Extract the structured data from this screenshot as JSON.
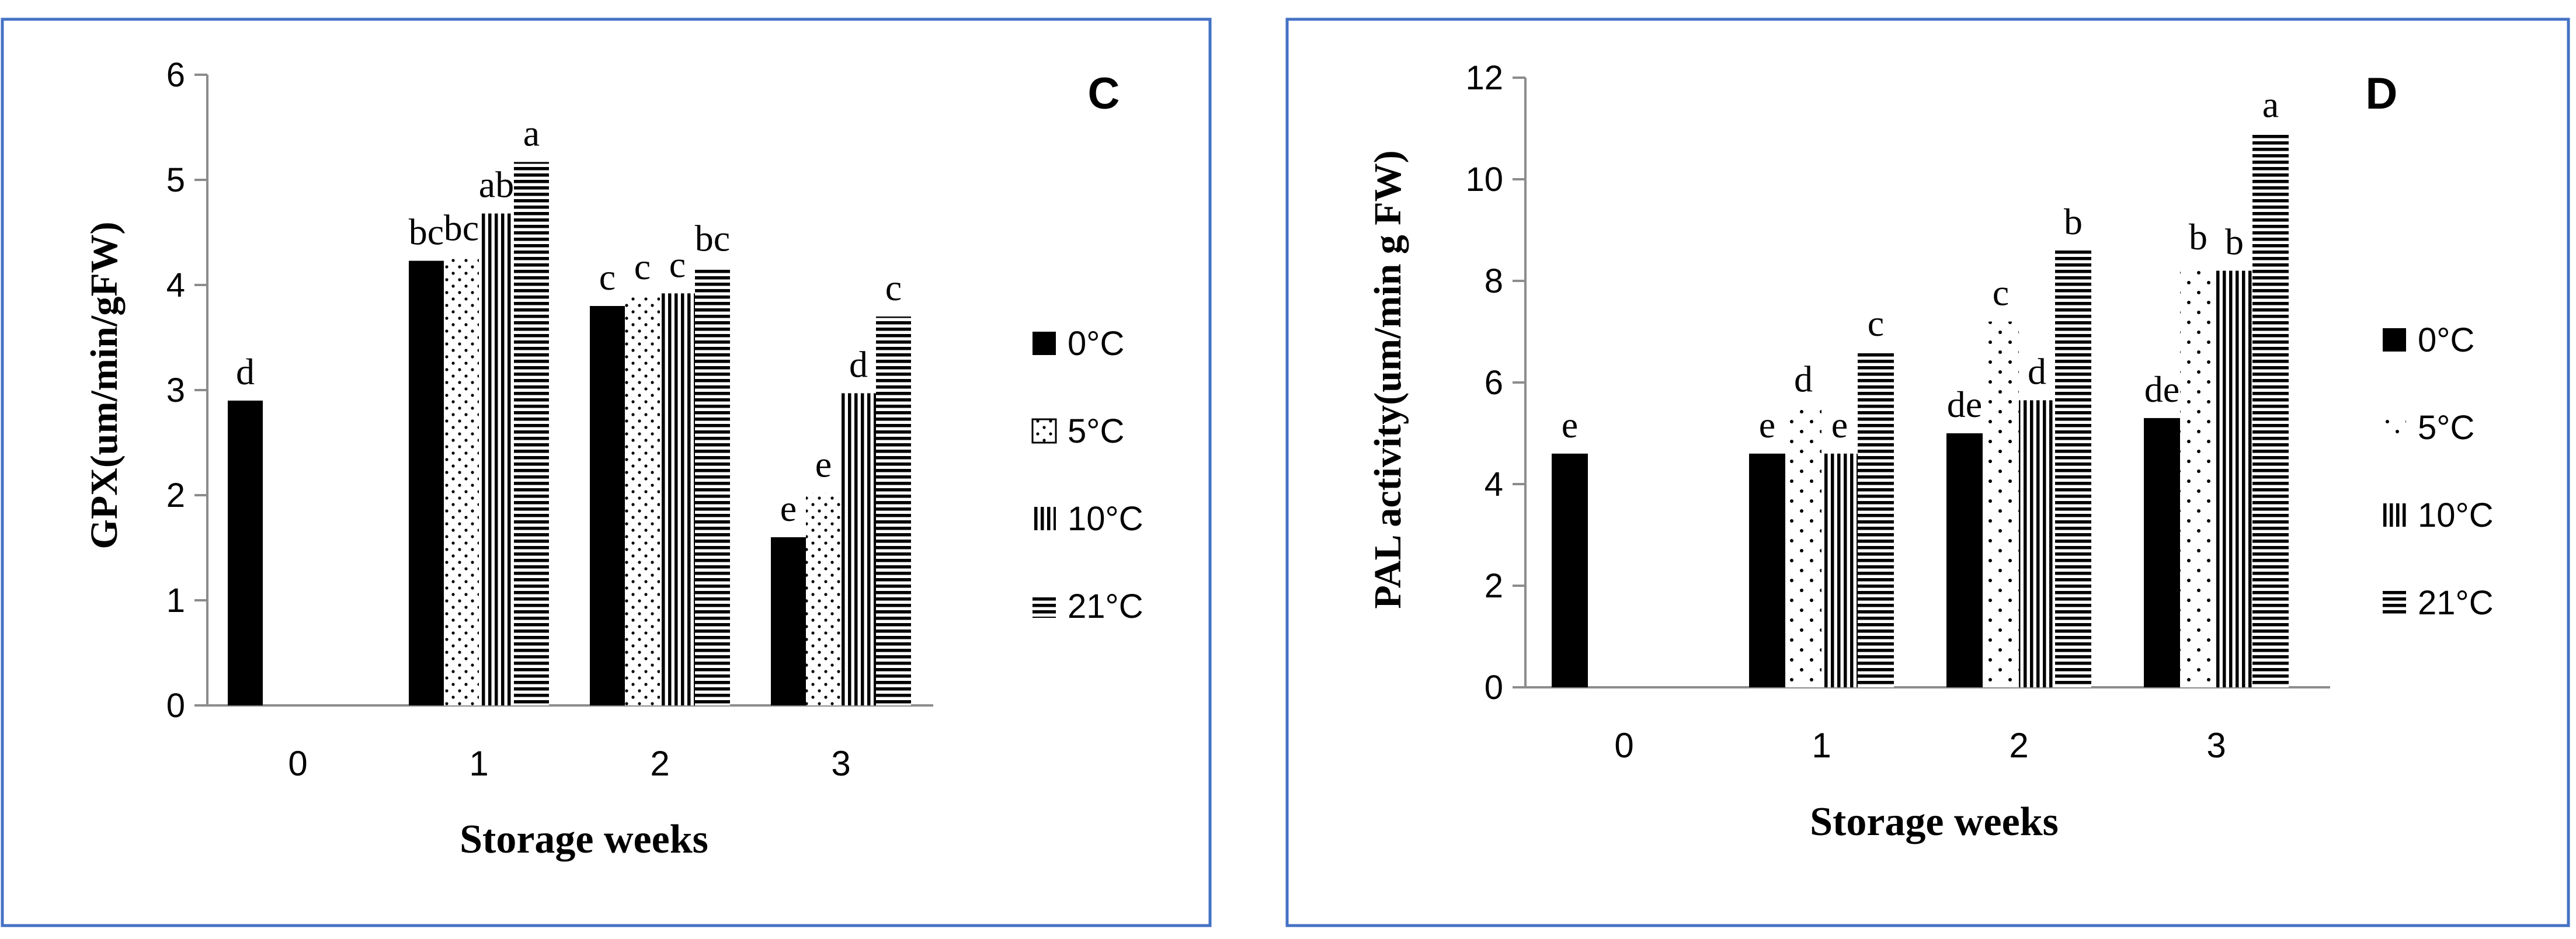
{
  "colors": {
    "frame": "#4472c4",
    "ink": "#000000",
    "axis": "#8c8c8c",
    "background": "#ffffff"
  },
  "chart_data": [
    {
      "type": "bar",
      "panel_label": "C",
      "title": "",
      "xlabel": "Storage weeks",
      "ylabel": "GPX(um/min/gFW)",
      "ylim": [
        0,
        6
      ],
      "yticks": [
        0,
        1,
        2,
        3,
        4,
        5,
        6
      ],
      "categories": [
        "0",
        "1",
        "2",
        "3"
      ],
      "series": [
        {
          "name": "0°C",
          "pattern": "solid",
          "values": [
            2.9,
            4.23,
            3.8,
            1.6
          ],
          "labels": [
            "d",
            "bc",
            "c",
            "e"
          ]
        },
        {
          "name": "5°C",
          "pattern": "dots",
          "values": [
            null,
            4.27,
            3.9,
            2.02
          ],
          "labels": [
            "",
            "bc",
            "c",
            "e"
          ]
        },
        {
          "name": "10°C",
          "pattern": "vertical",
          "values": [
            null,
            4.68,
            3.92,
            2.97
          ],
          "labels": [
            "",
            "ab",
            "c",
            "d"
          ]
        },
        {
          "name": "21°C",
          "pattern": "horizontal",
          "values": [
            null,
            5.17,
            4.17,
            3.7
          ],
          "labels": [
            "",
            "a",
            "bc",
            "c"
          ]
        }
      ],
      "legend_position": "right"
    },
    {
      "type": "bar",
      "panel_label": "D",
      "title": "",
      "xlabel": "Storage weeks",
      "ylabel": "PAL activity(um/min g FW)",
      "ylim": [
        0,
        12
      ],
      "yticks": [
        0,
        2,
        4,
        6,
        8,
        10,
        12
      ],
      "categories": [
        "0",
        "1",
        "2",
        "3"
      ],
      "series": [
        {
          "name": "0°C",
          "pattern": "solid",
          "values": [
            4.6,
            4.6,
            5.0,
            5.3
          ],
          "labels": [
            "e",
            "e",
            "de",
            "de"
          ]
        },
        {
          "name": "5°C",
          "pattern": "sparse-dots",
          "values": [
            null,
            5.5,
            7.2,
            8.3
          ],
          "labels": [
            "",
            "d",
            "c",
            "b"
          ]
        },
        {
          "name": "10°C",
          "pattern": "vertical",
          "values": [
            null,
            4.6,
            5.65,
            8.2
          ],
          "labels": [
            "",
            "e",
            "d",
            "b"
          ]
        },
        {
          "name": "21°C",
          "pattern": "horizontal",
          "values": [
            null,
            6.6,
            8.6,
            10.9
          ],
          "labels": [
            "",
            "c",
            "b",
            "a"
          ]
        }
      ],
      "legend_position": "right"
    }
  ]
}
